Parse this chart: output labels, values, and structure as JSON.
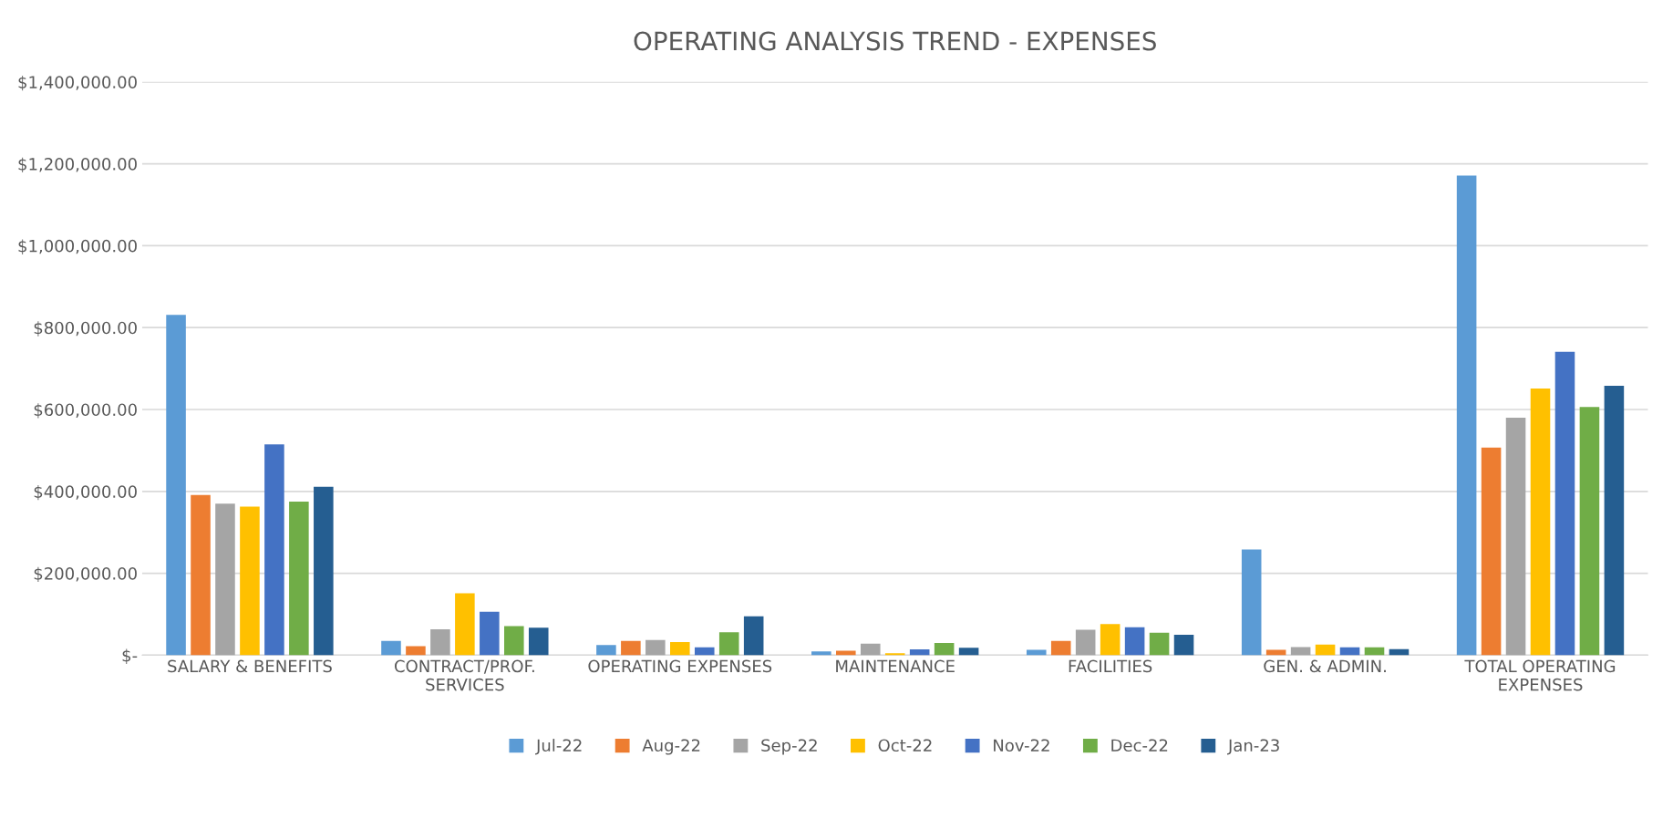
{
  "chart_data": {
    "type": "bar",
    "title": "OPERATING ANALYSIS TREND - EXPENSES",
    "categories": [
      "SALARY & BENEFITS",
      "CONTRACT/PROF.\nSERVICES",
      "OPERATING EXPENSES",
      "MAINTENANCE",
      "FACILITIES",
      "GEN. & ADMIN.",
      "TOTAL OPERATING\nEXPENSES"
    ],
    "series": [
      {
        "name": "Jul-22",
        "color": "#5b9bd5",
        "values": [
          831000,
          35000,
          25000,
          9000,
          13000,
          258000,
          1171000
        ]
      },
      {
        "name": "Aug-22",
        "color": "#ed7d31",
        "values": [
          391000,
          22000,
          35000,
          11000,
          35000,
          13000,
          507000
        ]
      },
      {
        "name": "Sep-22",
        "color": "#a5a5a5",
        "values": [
          370000,
          63000,
          37000,
          28000,
          62000,
          20000,
          580000
        ]
      },
      {
        "name": "Oct-22",
        "color": "#ffc000",
        "values": [
          363000,
          151000,
          32000,
          5000,
          76000,
          26000,
          651000
        ]
      },
      {
        "name": "Nov-22",
        "color": "#4472c4",
        "values": [
          515000,
          106000,
          19000,
          14000,
          68000,
          19000,
          741000
        ]
      },
      {
        "name": "Dec-22",
        "color": "#70ad47",
        "values": [
          375000,
          71000,
          56000,
          30000,
          55000,
          19000,
          606000
        ]
      },
      {
        "name": "Jan-23",
        "color": "#255e91",
        "values": [
          411000,
          67000,
          95000,
          18000,
          50000,
          15000,
          658000
        ]
      }
    ],
    "ylim": [
      0,
      1400000
    ],
    "yticks": [
      {
        "value": 0,
        "label": "$-"
      },
      {
        "value": 200000,
        "label": "$200,000.00"
      },
      {
        "value": 400000,
        "label": "$400,000.00"
      },
      {
        "value": 600000,
        "label": "$600,000.00"
      },
      {
        "value": 800000,
        "label": "$800,000.00"
      },
      {
        "value": 1000000,
        "label": "$1,000,000.00"
      },
      {
        "value": 1200000,
        "label": "$1,200,000.00"
      },
      {
        "value": 1400000,
        "label": "$1,400,000.00"
      }
    ],
    "grid": "y",
    "legend": "bottom"
  }
}
